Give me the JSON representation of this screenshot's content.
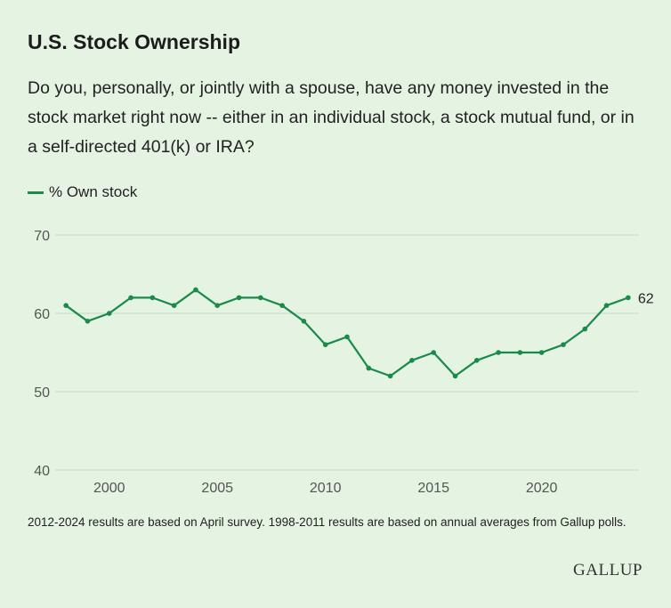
{
  "header": {
    "title": "U.S. Stock Ownership",
    "subtitle": "Do you, personally, or jointly with a spouse, have any money invested in the stock market right now -- either in an individual stock, a stock mutual fund, or in a self-directed 401(k) or IRA?"
  },
  "footer": {
    "note": "2012-2024 results are based on April survey. 1998-2011 results are based on annual averages from Gallup polls.",
    "logo": "GALLUP"
  },
  "chart_data": {
    "type": "line",
    "x": [
      1998,
      1999,
      2000,
      2001,
      2002,
      2003,
      2004,
      2005,
      2006,
      2007,
      2008,
      2009,
      2010,
      2011,
      2012,
      2013,
      2014,
      2015,
      2016,
      2017,
      2018,
      2019,
      2020,
      2021,
      2022,
      2023,
      2024
    ],
    "series": [
      {
        "name": "% Own stock",
        "color": "#1a8a4a",
        "values": [
          61,
          59,
          60,
          62,
          62,
          61,
          63,
          61,
          62,
          62,
          61,
          59,
          56,
          57,
          53,
          52,
          54,
          55,
          52,
          54,
          55,
          55,
          55,
          56,
          58,
          61,
          62
        ]
      }
    ],
    "end_label": "62",
    "xticks": [
      2000,
      2005,
      2010,
      2015,
      2020
    ],
    "yticks": [
      40,
      50,
      60,
      70
    ],
    "xlim": [
      1997.5,
      2024.5
    ],
    "ylim": [
      40,
      70
    ],
    "grid": "horizontal",
    "legend_position": "top-left"
  }
}
